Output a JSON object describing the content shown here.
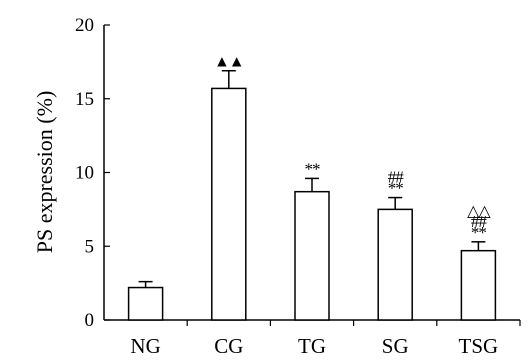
{
  "chart_data": {
    "type": "bar",
    "title": "",
    "xlabel": "",
    "ylabel": "PS expression  (%)",
    "ylim": [
      0,
      20
    ],
    "yticks": [
      0,
      5,
      10,
      15,
      20
    ],
    "categories": [
      "NG",
      "CG",
      "TG",
      "SG",
      "TSG"
    ],
    "series": [
      {
        "values": [
          2.2,
          15.7,
          8.7,
          7.5,
          4.7
        ],
        "errors": [
          0.4,
          1.2,
          0.9,
          0.8,
          0.6
        ]
      }
    ],
    "annotations": [
      {
        "category": "NG",
        "lines": []
      },
      {
        "category": "CG",
        "lines": [
          "▲▲"
        ]
      },
      {
        "category": "TG",
        "lines": [
          "**"
        ]
      },
      {
        "category": "SG",
        "lines": [
          "##",
          "**"
        ]
      },
      {
        "category": "TSG",
        "lines": [
          "△△",
          "##",
          "**"
        ]
      }
    ],
    "grid": false,
    "legend": "none",
    "colors": {
      "bar_fill": "#ffffff",
      "bar_stroke": "#000000"
    }
  }
}
